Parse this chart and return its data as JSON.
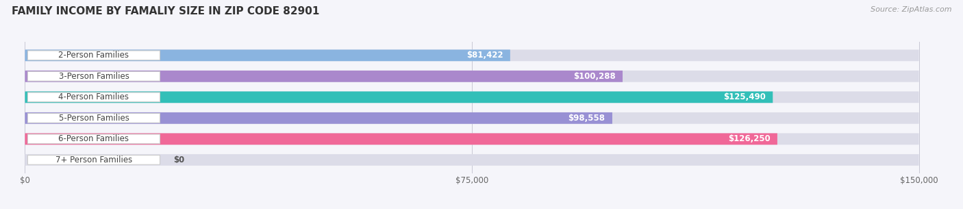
{
  "title": "FAMILY INCOME BY FAMALIY SIZE IN ZIP CODE 82901",
  "source": "Source: ZipAtlas.com",
  "categories": [
    "2-Person Families",
    "3-Person Families",
    "4-Person Families",
    "5-Person Families",
    "6-Person Families",
    "7+ Person Families"
  ],
  "values": [
    81422,
    100288,
    125490,
    98558,
    126250,
    0
  ],
  "bar_colors": [
    "#8ab4e0",
    "#aa88cc",
    "#32bfb8",
    "#9890d4",
    "#f06898",
    "#f0c090"
  ],
  "value_labels": [
    "$81,422",
    "$100,288",
    "$125,490",
    "$98,558",
    "$126,250",
    "$0"
  ],
  "xlim_max": 150000,
  "xtick_values": [
    0,
    75000,
    150000
  ],
  "xtick_labels": [
    "$0",
    "$75,000",
    "$150,000"
  ],
  "bg_color": "#f5f5fa",
  "bar_bg_color": "#dcdce8",
  "title_fontsize": 11,
  "source_fontsize": 8,
  "label_fontsize": 8.5,
  "value_fontsize": 8.5,
  "bar_height": 0.55,
  "n_bars": 6
}
